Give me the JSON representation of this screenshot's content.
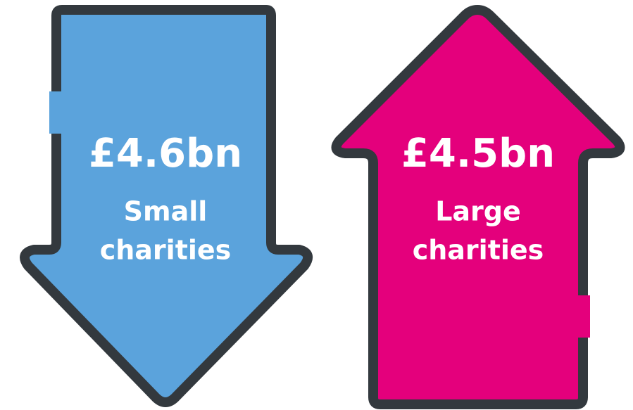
{
  "arrows": [
    {
      "amount": "£4.6bn",
      "label_lines": [
        "Small",
        "charities"
      ]
    },
    {
      "amount": "£4.5bn",
      "label_lines": [
        "Large",
        "charities"
      ]
    }
  ]
}
